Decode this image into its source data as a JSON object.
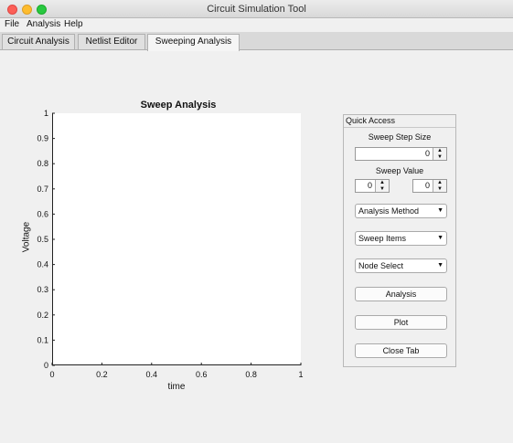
{
  "window": {
    "title": "Circuit Simulation Tool"
  },
  "menu": {
    "file": "File",
    "analysis": "Analysis",
    "help": "Help"
  },
  "tabs": [
    {
      "label": "Circuit Analysis"
    },
    {
      "label": "Netlist Editor"
    },
    {
      "label": "Sweeping Analysis",
      "active": true
    }
  ],
  "chart_data": {
    "type": "line",
    "title": "Sweep Analysis",
    "xlabel": "time",
    "ylabel": "Voltage",
    "xlim": [
      0,
      1
    ],
    "ylim": [
      0,
      1
    ],
    "x_ticks": [
      "0",
      "0.2",
      "0.4",
      "0.6",
      "0.8",
      "1"
    ],
    "y_ticks": [
      "0",
      "0.1",
      "0.2",
      "0.3",
      "0.4",
      "0.5",
      "0.6",
      "0.7",
      "0.8",
      "0.9",
      "1"
    ],
    "series": [],
    "grid": false
  },
  "quick_access": {
    "title": "Quick Access",
    "sweep_step_size_label": "Sweep Step Size",
    "sweep_step_size_value": "0",
    "sweep_value_label": "Sweep Value",
    "sweep_value_start": "0",
    "sweep_value_end": "0",
    "analysis_method": "Analysis Method",
    "sweep_items": "Sweep Items",
    "node_select": "Node Select",
    "analysis_button": "Analysis",
    "plot_button": "Plot",
    "close_tab_button": "Close Tab"
  }
}
